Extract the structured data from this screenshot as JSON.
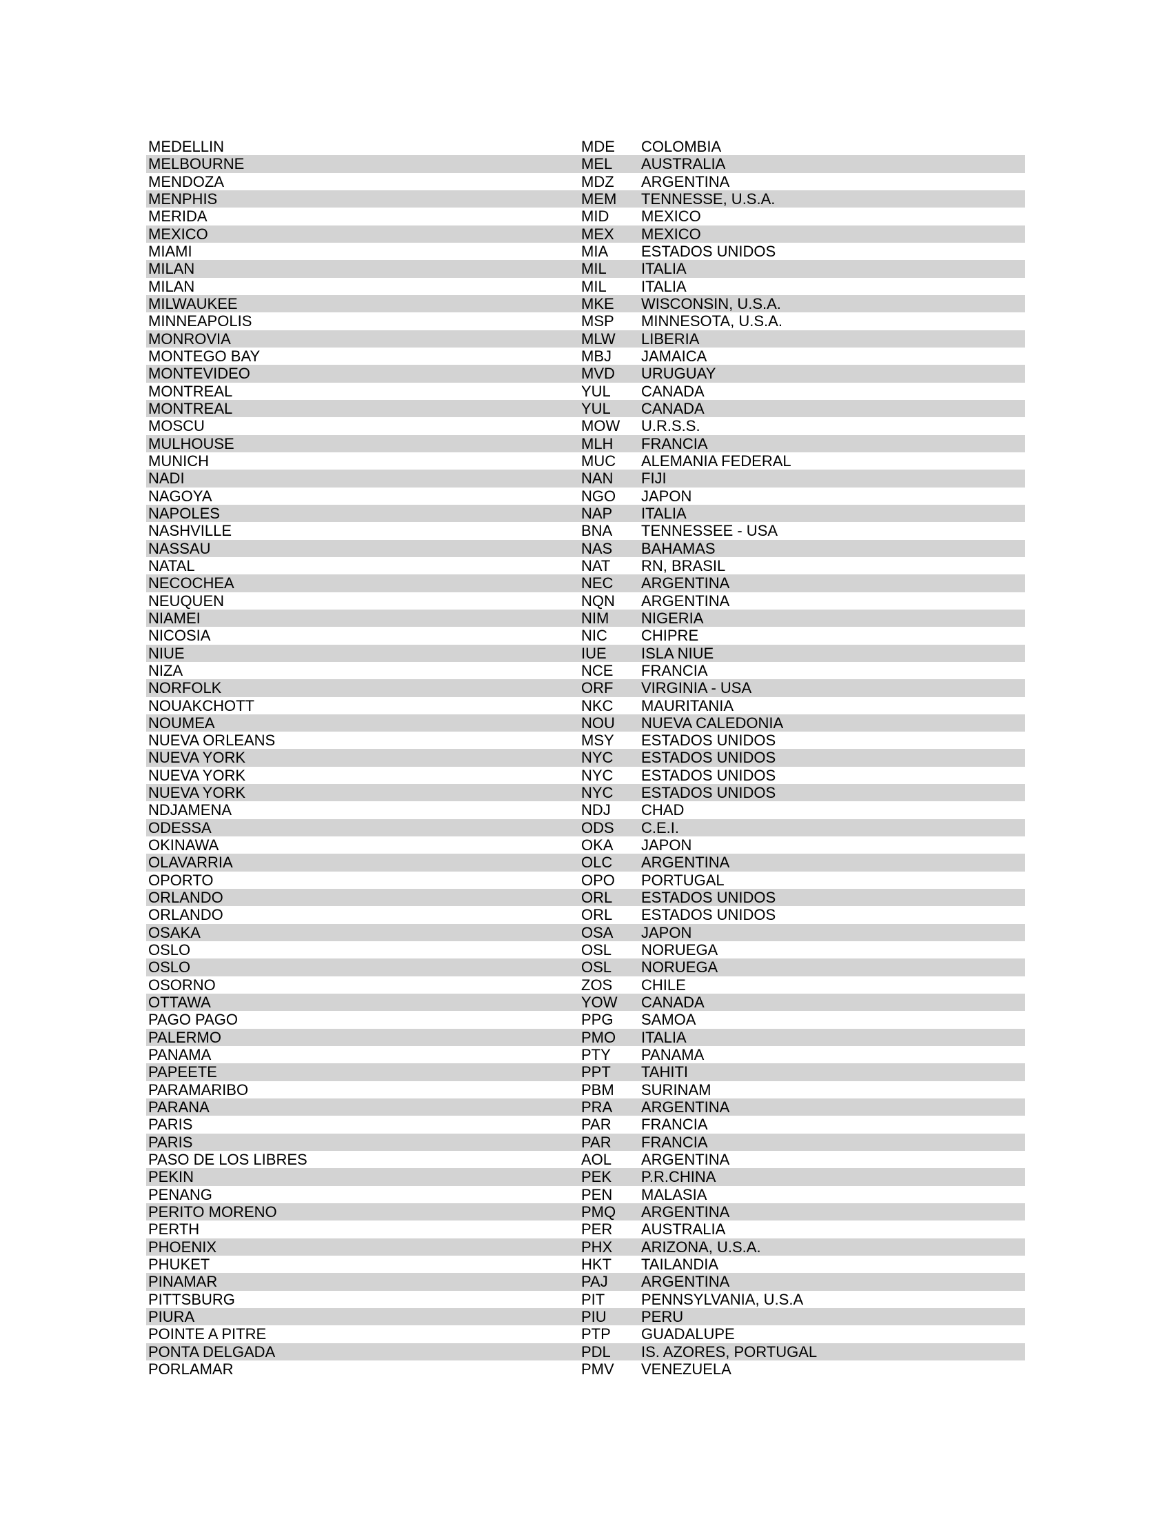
{
  "page": {
    "background_color": "#ffffff",
    "text_color": "#000000"
  },
  "table": {
    "stripe_color": "#d3d3d3",
    "rows": [
      {
        "city": "MEDELLIN",
        "code": "MDE",
        "country": "COLOMBIA"
      },
      {
        "city": "MELBOURNE",
        "code": "MEL",
        "country": "AUSTRALIA"
      },
      {
        "city": "MENDOZA",
        "code": "MDZ",
        "country": "ARGENTINA"
      },
      {
        "city": "MENPHIS",
        "code": "MEM",
        "country": "TENNESSE, U.S.A."
      },
      {
        "city": "MERIDA",
        "code": "MID",
        "country": "MEXICO"
      },
      {
        "city": "MEXICO",
        "code": "MEX",
        "country": "MEXICO"
      },
      {
        "city": "MIAMI",
        "code": "MIA",
        "country": "ESTADOS UNIDOS"
      },
      {
        "city": "MILAN",
        "code": "MIL",
        "country": "ITALIA"
      },
      {
        "city": "MILAN",
        "code": "MIL",
        "country": "ITALIA"
      },
      {
        "city": "MILWAUKEE",
        "code": "MKE",
        "country": "WISCONSIN, U.S.A."
      },
      {
        "city": "MINNEAPOLIS",
        "code": "MSP",
        "country": "MINNESOTA, U.S.A."
      },
      {
        "city": "MONROVIA",
        "code": "MLW",
        "country": "LIBERIA"
      },
      {
        "city": "MONTEGO BAY",
        "code": "MBJ",
        "country": "JAMAICA"
      },
      {
        "city": "MONTEVIDEO",
        "code": "MVD",
        "country": "URUGUAY"
      },
      {
        "city": "MONTREAL",
        "code": "YUL",
        "country": "CANADA"
      },
      {
        "city": "MONTREAL",
        "code": "YUL",
        "country": "CANADA"
      },
      {
        "city": "MOSCU",
        "code": "MOW",
        "country": "U.R.S.S."
      },
      {
        "city": "MULHOUSE",
        "code": "MLH",
        "country": "FRANCIA"
      },
      {
        "city": "MUNICH",
        "code": "MUC",
        "country": "ALEMANIA FEDERAL"
      },
      {
        "city": "NADI",
        "code": "NAN",
        "country": "FIJI"
      },
      {
        "city": "NAGOYA",
        "code": "NGO",
        "country": "JAPON"
      },
      {
        "city": "NAPOLES",
        "code": "NAP",
        "country": "ITALIA"
      },
      {
        "city": "NASHVILLE",
        "code": "BNA",
        "country": "TENNESSEE - USA"
      },
      {
        "city": "NASSAU",
        "code": "NAS",
        "country": "BAHAMAS"
      },
      {
        "city": "NATAL",
        "code": "NAT",
        "country": "RN, BRASIL"
      },
      {
        "city": "NECOCHEA",
        "code": "NEC",
        "country": "ARGENTINA"
      },
      {
        "city": "NEUQUEN",
        "code": "NQN",
        "country": "ARGENTINA"
      },
      {
        "city": "NIAMEI",
        "code": "NIM",
        "country": "NIGERIA"
      },
      {
        "city": "NICOSIA",
        "code": "NIC",
        "country": "CHIPRE"
      },
      {
        "city": "NIUE",
        "code": "IUE",
        "country": "ISLA NIUE"
      },
      {
        "city": "NIZA",
        "code": "NCE",
        "country": "FRANCIA"
      },
      {
        "city": "NORFOLK",
        "code": "ORF",
        "country": "VIRGINIA - USA"
      },
      {
        "city": "NOUAKCHOTT",
        "code": "NKC",
        "country": "MAURITANIA"
      },
      {
        "city": "NOUMEA",
        "code": "NOU",
        "country": "NUEVA CALEDONIA"
      },
      {
        "city": "NUEVA ORLEANS",
        "code": "MSY",
        "country": "ESTADOS UNIDOS"
      },
      {
        "city": "NUEVA YORK",
        "code": "NYC",
        "country": "ESTADOS UNIDOS"
      },
      {
        "city": "NUEVA YORK",
        "code": "NYC",
        "country": "ESTADOS UNIDOS"
      },
      {
        "city": "NUEVA YORK",
        "code": "NYC",
        "country": "ESTADOS UNIDOS"
      },
      {
        "city": "NDJAMENA",
        "code": "NDJ",
        "country": "CHAD"
      },
      {
        "city": "ODESSA",
        "code": "ODS",
        "country": "C.E.I."
      },
      {
        "city": "OKINAWA",
        "code": "OKA",
        "country": "JAPON"
      },
      {
        "city": "OLAVARRIA",
        "code": "OLC",
        "country": "ARGENTINA"
      },
      {
        "city": "OPORTO",
        "code": "OPO",
        "country": "PORTUGAL"
      },
      {
        "city": "ORLANDO",
        "code": "ORL",
        "country": "ESTADOS UNIDOS"
      },
      {
        "city": "ORLANDO",
        "code": "ORL",
        "country": "ESTADOS UNIDOS"
      },
      {
        "city": "OSAKA",
        "code": "OSA",
        "country": "JAPON"
      },
      {
        "city": "OSLO",
        "code": "OSL",
        "country": "NORUEGA"
      },
      {
        "city": "OSLO",
        "code": "OSL",
        "country": "NORUEGA"
      },
      {
        "city": "OSORNO",
        "code": "ZOS",
        "country": "CHILE"
      },
      {
        "city": "OTTAWA",
        "code": "YOW",
        "country": "CANADA"
      },
      {
        "city": "PAGO PAGO",
        "code": "PPG",
        "country": "SAMOA"
      },
      {
        "city": "PALERMO",
        "code": "PMO",
        "country": "ITALIA"
      },
      {
        "city": "PANAMA",
        "code": "PTY",
        "country": "PANAMA"
      },
      {
        "city": "PAPEETE",
        "code": "PPT",
        "country": "TAHITI"
      },
      {
        "city": "PARAMARIBO",
        "code": "PBM",
        "country": "SURINAM"
      },
      {
        "city": "PARANA",
        "code": "PRA",
        "country": "ARGENTINA"
      },
      {
        "city": "PARIS",
        "code": "PAR",
        "country": "FRANCIA"
      },
      {
        "city": "PARIS",
        "code": "PAR",
        "country": "FRANCIA"
      },
      {
        "city": "PASO DE LOS LIBRES",
        "code": "AOL",
        "country": "ARGENTINA"
      },
      {
        "city": "PEKIN",
        "code": "PEK",
        "country": "P.R.CHINA"
      },
      {
        "city": "PENANG",
        "code": "PEN",
        "country": "MALASIA"
      },
      {
        "city": "PERITO MORENO",
        "code": "PMQ",
        "country": "ARGENTINA"
      },
      {
        "city": "PERTH",
        "code": "PER",
        "country": "AUSTRALIA"
      },
      {
        "city": "PHOENIX",
        "code": "PHX",
        "country": "ARIZONA, U.S.A."
      },
      {
        "city": "PHUKET",
        "code": "HKT",
        "country": "TAILANDIA"
      },
      {
        "city": "PINAMAR",
        "code": "PAJ",
        "country": "ARGENTINA"
      },
      {
        "city": "PITTSBURG",
        "code": "PIT",
        "country": "PENNSYLVANIA, U.S.A"
      },
      {
        "city": "PIURA",
        "code": "PIU",
        "country": "PERU"
      },
      {
        "city": "POINTE A PITRE",
        "code": "PTP",
        "country": "GUADALUPE"
      },
      {
        "city": "PONTA DELGADA",
        "code": "PDL",
        "country": "IS. AZORES, PORTUGAL"
      },
      {
        "city": "PORLAMAR",
        "code": "PMV",
        "country": "VENEZUELA"
      }
    ]
  }
}
